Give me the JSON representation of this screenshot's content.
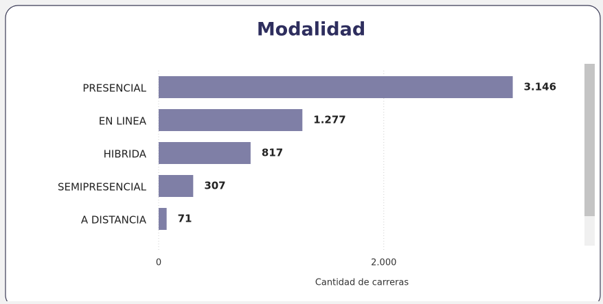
{
  "chart_data": {
    "type": "barh",
    "title": "Modalidad",
    "categories": [
      "PRESENCIAL",
      "EN LINEA",
      "HIBRIDA",
      "SEMIPRESENCIAL",
      "A DISTANCIA"
    ],
    "values": [
      3146,
      1277,
      817,
      307,
      71
    ],
    "value_labels": [
      "3.146",
      "1.277",
      "817",
      "307",
      "71"
    ],
    "color": "#7f7fa6",
    "xlabel": "Cantidad de carreras",
    "xlim": [
      0,
      3600
    ],
    "xticks": [
      0,
      {
        "value": 2000,
        "label": "2.000"
      }
    ],
    "grid": true
  }
}
